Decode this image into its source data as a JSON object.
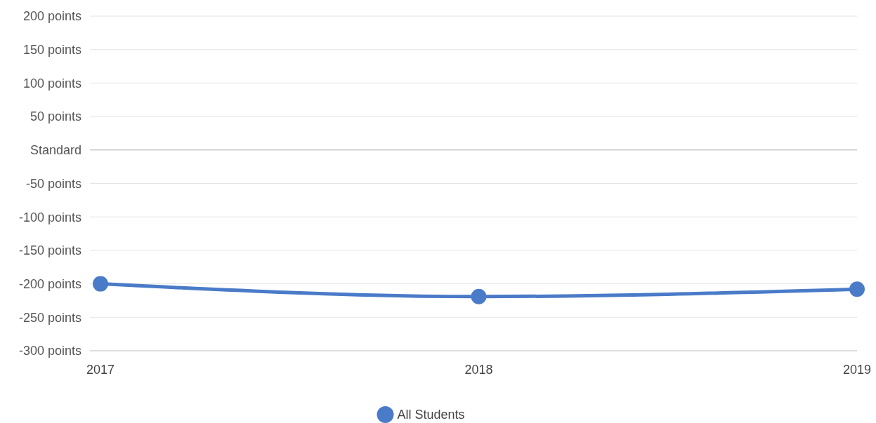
{
  "chart_data": {
    "type": "line",
    "categories": [
      "2017",
      "2018",
      "2019"
    ],
    "series": [
      {
        "name": "All Students",
        "color": "#4a7bc8",
        "values": [
          -200,
          -219,
          -208
        ]
      }
    ],
    "ylim": [
      -300,
      200
    ],
    "yticks": [
      {
        "value": 200,
        "label": "200 points"
      },
      {
        "value": 150,
        "label": "150 points"
      },
      {
        "value": 100,
        "label": "100 points"
      },
      {
        "value": 50,
        "label": "50 points"
      },
      {
        "value": 0,
        "label": "Standard"
      },
      {
        "value": -50,
        "label": "-50 points"
      },
      {
        "value": -100,
        "label": "-100 points"
      },
      {
        "value": -150,
        "label": "-150 points"
      },
      {
        "value": -200,
        "label": "-200 points"
      },
      {
        "value": -250,
        "label": "-250 points"
      },
      {
        "value": -300,
        "label": "-300 points"
      }
    ],
    "grid": "y",
    "legend": "bottom",
    "marker": "circle"
  }
}
